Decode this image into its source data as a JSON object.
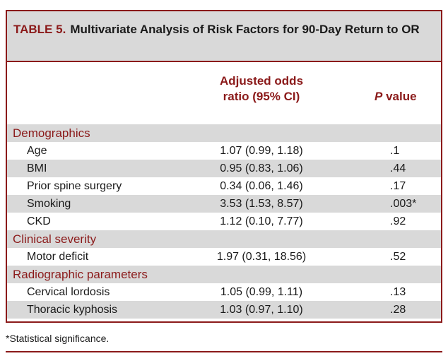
{
  "table": {
    "label": "TABLE 5.",
    "title": "Multivariate Analysis of Risk Factors for 90-Day Return to OR",
    "col_or_line1": "Adjusted odds",
    "col_or_line2": "ratio (95% CI)",
    "col_p_italic": "P",
    "col_p_rest": " value",
    "sections": [
      {
        "heading": "Demographics",
        "rows": [
          {
            "name": "Age",
            "or": "1.07 (0.99, 1.18)",
            "p": ".1"
          },
          {
            "name": "BMI",
            "or": "0.95 (0.83, 1.06)",
            "p": ".44"
          },
          {
            "name": "Prior spine surgery",
            "or": "0.34 (0.06, 1.46)",
            "p": ".17"
          },
          {
            "name": "Smoking",
            "or": "3.53 (1.53, 8.57)",
            "p": ".003*"
          },
          {
            "name": "CKD",
            "or": "1.12 (0.10, 7.77)",
            "p": ".92"
          }
        ]
      },
      {
        "heading": "Clinical severity",
        "rows": [
          {
            "name": "Motor deficit",
            "or": "1.97 (0.31, 18.56)",
            "p": ".52"
          }
        ]
      },
      {
        "heading": "Radiographic parameters",
        "rows": [
          {
            "name": "Cervical lordosis",
            "or": "1.05 (0.99, 1.11)",
            "p": ".13"
          },
          {
            "name": "Thoracic kyphosis",
            "or": "1.03 (0.97, 1.10)",
            "p": ".28"
          }
        ]
      }
    ],
    "footnote": "*Statistical significance."
  },
  "colors": {
    "accent": "#8b1a1a",
    "shade": "#d9d9d9"
  }
}
